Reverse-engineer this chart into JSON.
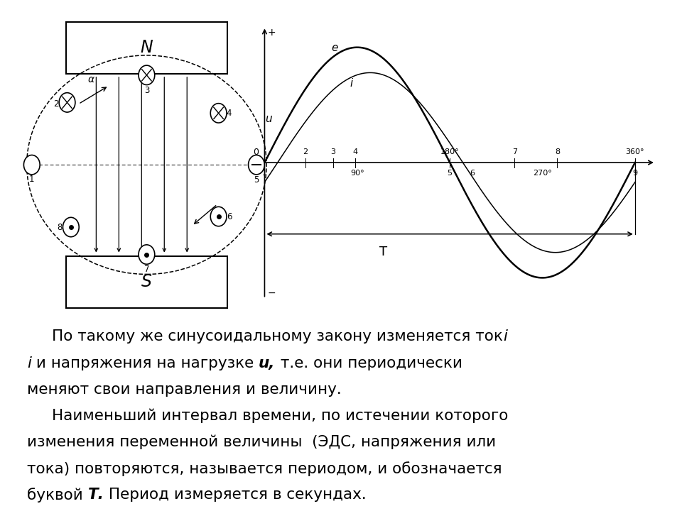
{
  "bg_color": "#ffffff",
  "text_lines": [
    {
      "indent": true,
      "parts": [
        {
          "text": "По такому же синусоидальному закону изменяется ток",
          "style": "normal"
        },
        {
          "text": "i",
          "style": "italic"
        }
      ]
    },
    {
      "indent": false,
      "parts": [
        {
          "text": "i",
          "style": "italic"
        },
        {
          "text": " и напряжения на нагрузке ",
          "style": "normal"
        },
        {
          "text": "u,",
          "style": "italic_bold"
        },
        {
          "text": " т.е. они периодически",
          "style": "normal"
        }
      ]
    },
    {
      "indent": false,
      "parts": [
        {
          "text": "меняют свои направления и величину.",
          "style": "normal"
        }
      ]
    },
    {
      "indent": true,
      "parts": [
        {
          "text": "Наименьший интервал времени, по истечении которого",
          "style": "normal"
        }
      ]
    },
    {
      "indent": false,
      "parts": [
        {
          "text": "изменения переменной величины  (ЭДС, напряжения или",
          "style": "normal"
        }
      ]
    },
    {
      "indent": false,
      "parts": [
        {
          "text": "тока) повторяются, называется периодом, и обозначается",
          "style": "normal"
        }
      ]
    },
    {
      "indent": false,
      "parts": [
        {
          "text": "буквой ",
          "style": "normal"
        },
        {
          "text": "Т.",
          "style": "bold_italic"
        },
        {
          "text": " Период измеряется в секундах.",
          "style": "normal"
        }
      ]
    }
  ],
  "sine_e_amp": 1.0,
  "sine_i_amp": 0.78,
  "sine_i_phase_lag": 0.22,
  "period_label": "T"
}
